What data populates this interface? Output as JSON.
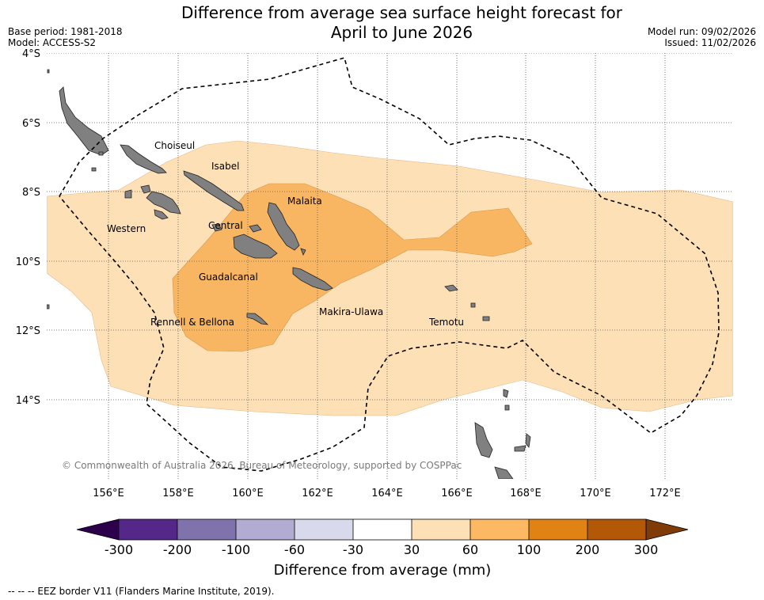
{
  "header": {
    "title_line1": "Difference from average sea surface height forecast for",
    "title_line2": "April to June 2026",
    "base_period": "Base period: 1981-2018",
    "model": "Model: ACCESS-S2",
    "model_run": "Model run: 09/02/2026",
    "issued": "Issued: 11/02/2026"
  },
  "map": {
    "lat_labels": [
      "4°S",
      "6°S",
      "8°S",
      "10°S",
      "12°S",
      "14°S"
    ],
    "lon_labels": [
      "156°E",
      "158°E",
      "160°E",
      "162°E",
      "164°E",
      "166°E",
      "168°E",
      "170°E",
      "172°E"
    ],
    "regions": [
      "Choiseul",
      "Isabel",
      "Malaita",
      "Western",
      "Central",
      "Guadalcanal",
      "Makira-Ulawa",
      "Rennell & Bellona",
      "Temotu"
    ],
    "copyright": "© Commonwealth of Australia 2026, Bureau of Meteorology, supported by COSPPac",
    "land_color": "#808080",
    "anomaly_colors": {
      "30_to_60": "#fde0b6",
      "60_to_100": "#f9b662"
    }
  },
  "colorbar": {
    "ticks": [
      "-300",
      "-200",
      "-100",
      "-60",
      "-30",
      "30",
      "60",
      "100",
      "200",
      "300"
    ],
    "colors": [
      "#542788",
      "#8073ac",
      "#b2abd2",
      "#d8daeb",
      "#ffffff",
      "#fee0b6",
      "#fdb863",
      "#e08214",
      "#b35806"
    ],
    "under_color": "#2d004b",
    "over_color": "#7f3b08",
    "label": "Difference from average (mm)"
  },
  "footer": {
    "eez_legend": "--  --  -- EEZ border V11 (Flanders Marine Institute, 2019)."
  }
}
